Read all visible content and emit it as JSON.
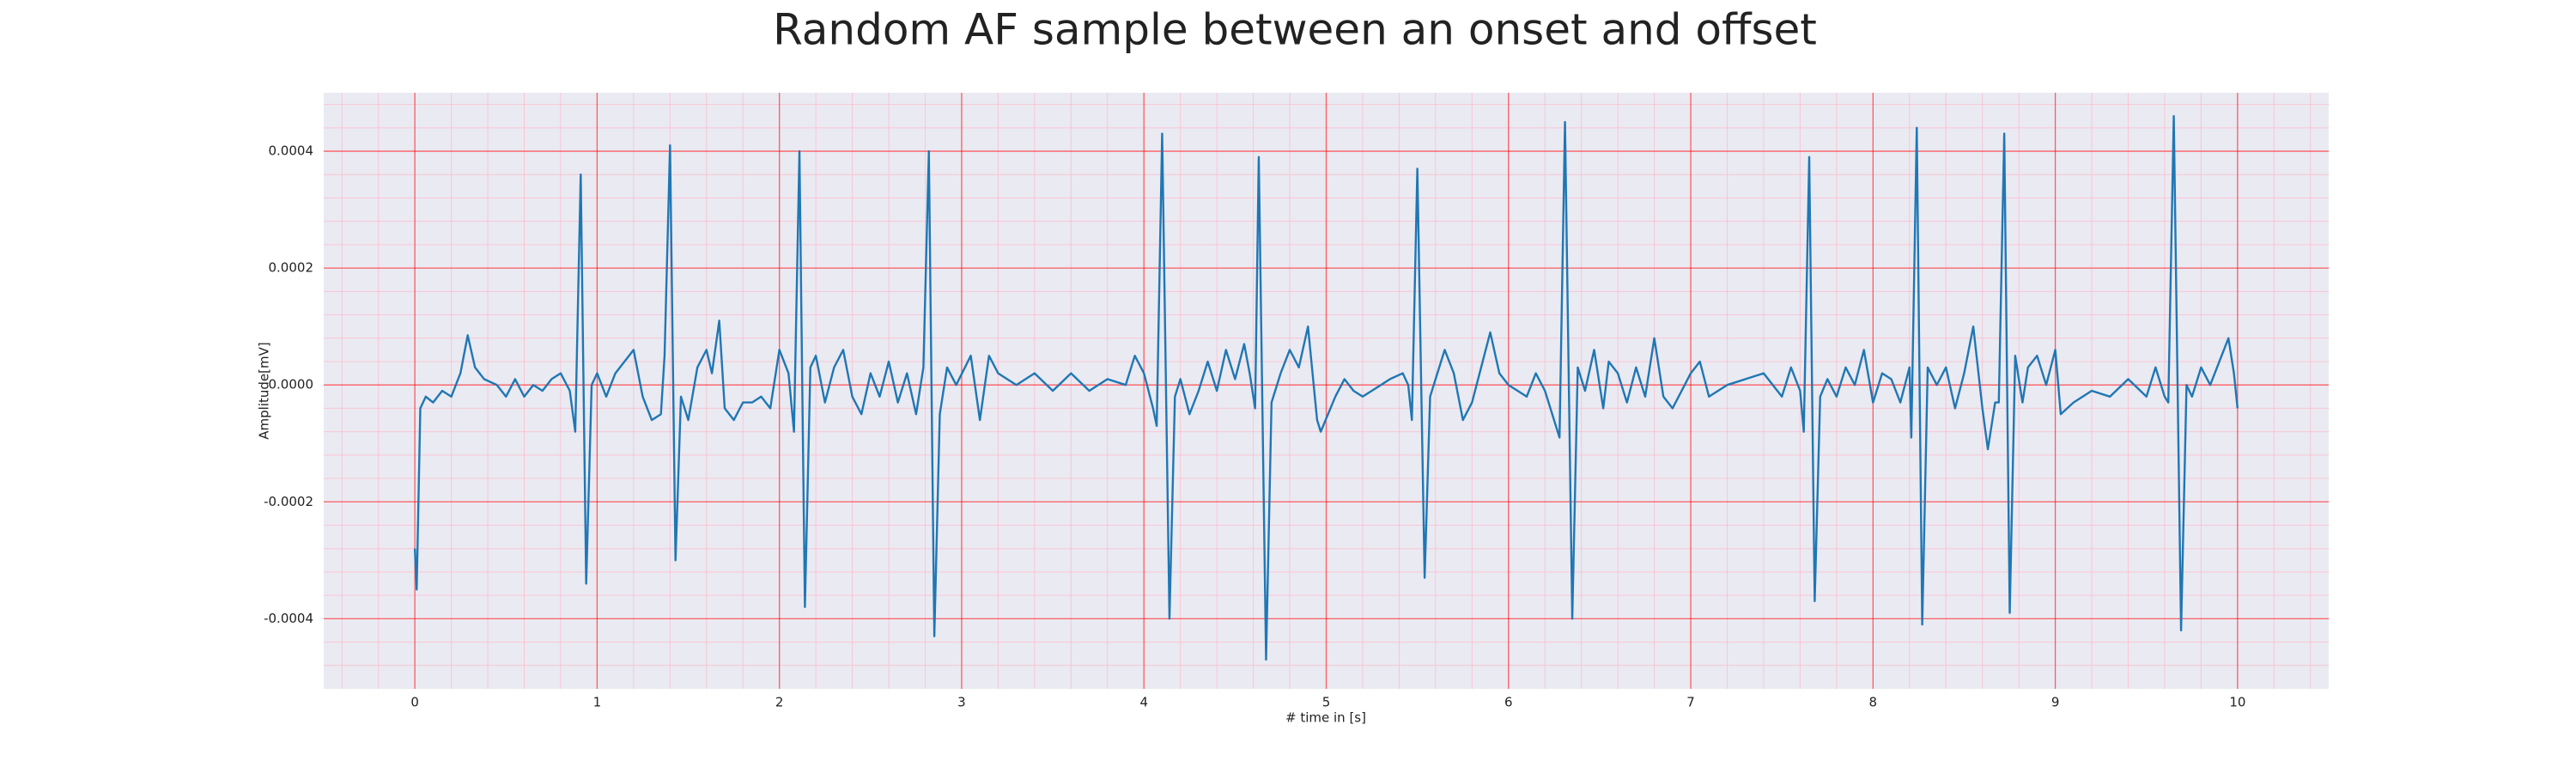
{
  "chart_data": {
    "type": "line",
    "title": "Random AF sample between an onset and offset",
    "xlabel": "# time in [s]",
    "ylabel": "Amplitude[mV]",
    "color": "#1f77b4",
    "grid": true,
    "minor_grid": true,
    "xlim": [
      -0.5,
      10.5
    ],
    "ylim": [
      -0.00052,
      0.0005
    ],
    "xticks": [
      0,
      1,
      2,
      3,
      4,
      5,
      6,
      7,
      8,
      9,
      10
    ],
    "yticks": [
      -0.0004,
      -0.0002,
      {
        "value": 0,
        "label": "0.0000"
      },
      0.0002,
      0.0004
    ],
    "x": [
      0,
      0.01,
      0.03,
      0.06,
      0.1,
      0.15,
      0.2,
      0.25,
      0.29,
      0.33,
      0.38,
      0.45,
      0.5,
      0.55,
      0.6,
      0.65,
      0.7,
      0.75,
      0.8,
      0.85,
      0.88,
      0.91,
      0.94,
      0.97,
      1.0,
      1.05,
      1.1,
      1.15,
      1.2,
      1.25,
      1.3,
      1.35,
      1.37,
      1.4,
      1.43,
      1.46,
      1.5,
      1.55,
      1.6,
      1.63,
      1.67,
      1.7,
      1.75,
      1.8,
      1.85,
      1.9,
      1.95,
      2.0,
      2.05,
      2.08,
      2.11,
      2.14,
      2.17,
      2.2,
      2.25,
      2.3,
      2.35,
      2.4,
      2.45,
      2.5,
      2.55,
      2.6,
      2.65,
      2.7,
      2.75,
      2.79,
      2.82,
      2.85,
      2.88,
      2.92,
      2.97,
      3.05,
      3.1,
      3.15,
      3.2,
      3.3,
      3.4,
      3.5,
      3.6,
      3.7,
      3.8,
      3.9,
      3.95,
      4.0,
      4.05,
      4.07,
      4.1,
      4.14,
      4.17,
      4.2,
      4.25,
      4.3,
      4.35,
      4.4,
      4.45,
      4.5,
      4.55,
      4.58,
      4.61,
      4.63,
      4.67,
      4.7,
      4.75,
      4.8,
      4.85,
      4.9,
      4.95,
      4.97,
      5.05,
      5.1,
      5.15,
      5.2,
      5.3,
      5.35,
      5.42,
      5.45,
      5.47,
      5.5,
      5.54,
      5.57,
      5.6,
      5.65,
      5.7,
      5.75,
      5.8,
      5.9,
      5.95,
      6.0,
      6.1,
      6.15,
      6.2,
      6.28,
      6.31,
      6.35,
      6.38,
      6.42,
      6.47,
      6.52,
      6.55,
      6.6,
      6.65,
      6.7,
      6.75,
      6.8,
      6.85,
      6.9,
      7.0,
      7.05,
      7.1,
      7.2,
      7.3,
      7.4,
      7.5,
      7.55,
      7.6,
      7.62,
      7.65,
      7.68,
      7.71,
      7.75,
      7.8,
      7.85,
      7.9,
      7.95,
      8.0,
      8.05,
      8.1,
      8.15,
      8.2,
      8.21,
      8.24,
      8.27,
      8.3,
      8.35,
      8.4,
      8.45,
      8.5,
      8.55,
      8.6,
      8.63,
      8.67,
      8.69,
      8.72,
      8.75,
      8.78,
      8.82,
      8.85,
      8.9,
      8.95,
      9.0,
      9.03,
      9.1,
      9.2,
      9.3,
      9.4,
      9.5,
      9.55,
      9.6,
      9.62,
      9.65,
      9.69,
      9.72,
      9.75,
      9.8,
      9.85,
      9.9,
      9.95,
      9.98,
      10.0
    ],
    "values": [
      -0.00028,
      -0.00035,
      -4e-05,
      -2e-05,
      -3e-05,
      -1e-05,
      -2e-05,
      2e-05,
      8.5e-05,
      3e-05,
      1e-05,
      0,
      -2e-05,
      1e-05,
      -2e-05,
      0,
      -1e-05,
      1e-05,
      2e-05,
      -1e-05,
      -8e-05,
      0.00036,
      -0.00034,
      0,
      2e-05,
      -2e-05,
      2e-05,
      4e-05,
      6e-05,
      -2e-05,
      -6e-05,
      -5e-05,
      5e-05,
      0.00041,
      -0.0003,
      -2e-05,
      -6e-05,
      3e-05,
      6e-05,
      2e-05,
      0.00011,
      -4e-05,
      -6e-05,
      -3e-05,
      -3e-05,
      -2e-05,
      -4e-05,
      6e-05,
      2e-05,
      -8e-05,
      0.0004,
      -0.00038,
      3e-05,
      5e-05,
      -3e-05,
      3e-05,
      6e-05,
      -2e-05,
      -5e-05,
      2e-05,
      -2e-05,
      4e-05,
      -3e-05,
      2e-05,
      -5e-05,
      3e-05,
      0.0004,
      -0.00043,
      -5e-05,
      3e-05,
      0,
      5e-05,
      -6e-05,
      5e-05,
      2e-05,
      0,
      2e-05,
      -1e-05,
      2e-05,
      -1e-05,
      1e-05,
      0,
      5e-05,
      2e-05,
      -4e-05,
      -7e-05,
      0.00043,
      -0.0004,
      -2e-05,
      1e-05,
      -5e-05,
      -1e-05,
      4e-05,
      -1e-05,
      6e-05,
      1e-05,
      7e-05,
      2e-05,
      -4e-05,
      0.00039,
      -0.00047,
      -3e-05,
      2e-05,
      6e-05,
      3e-05,
      0.0001,
      -6e-05,
      -8e-05,
      -2e-05,
      1e-05,
      -1e-05,
      -2e-05,
      0,
      1e-05,
      2e-05,
      0,
      -6e-05,
      0.00037,
      -0.00033,
      -2e-05,
      1e-05,
      6e-05,
      2e-05,
      -6e-05,
      -3e-05,
      9e-05,
      2e-05,
      0,
      -2e-05,
      2e-05,
      -1e-05,
      -9e-05,
      0.00045,
      -0.0004,
      3e-05,
      -1e-05,
      6e-05,
      -4e-05,
      4e-05,
      2e-05,
      -3e-05,
      3e-05,
      -2e-05,
      8e-05,
      -2e-05,
      -4e-05,
      2e-05,
      4e-05,
      -2e-05,
      0,
      1e-05,
      2e-05,
      -2e-05,
      3e-05,
      -1e-05,
      -8e-05,
      0.00039,
      -0.00037,
      -2e-05,
      1e-05,
      -2e-05,
      3e-05,
      0,
      6e-05,
      -3e-05,
      2e-05,
      1e-05,
      -3e-05,
      3e-05,
      -9e-05,
      0.00044,
      -0.00041,
      3e-05,
      0,
      3e-05,
      -4e-05,
      2e-05,
      0.0001,
      -4e-05,
      -0.00011,
      -3e-05,
      -3e-05,
      0.00043,
      -0.00039,
      5e-05,
      -3e-05,
      3e-05,
      5e-05,
      0,
      6e-05,
      -5e-05,
      -3e-05,
      -1e-05,
      -2e-05,
      1e-05,
      -2e-05,
      3e-05,
      -2e-05,
      -3e-05,
      0.00046,
      -0.00042,
      0,
      -2e-05,
      3e-05,
      0,
      4e-05,
      8e-05,
      2e-05,
      -4e-05
    ]
  }
}
